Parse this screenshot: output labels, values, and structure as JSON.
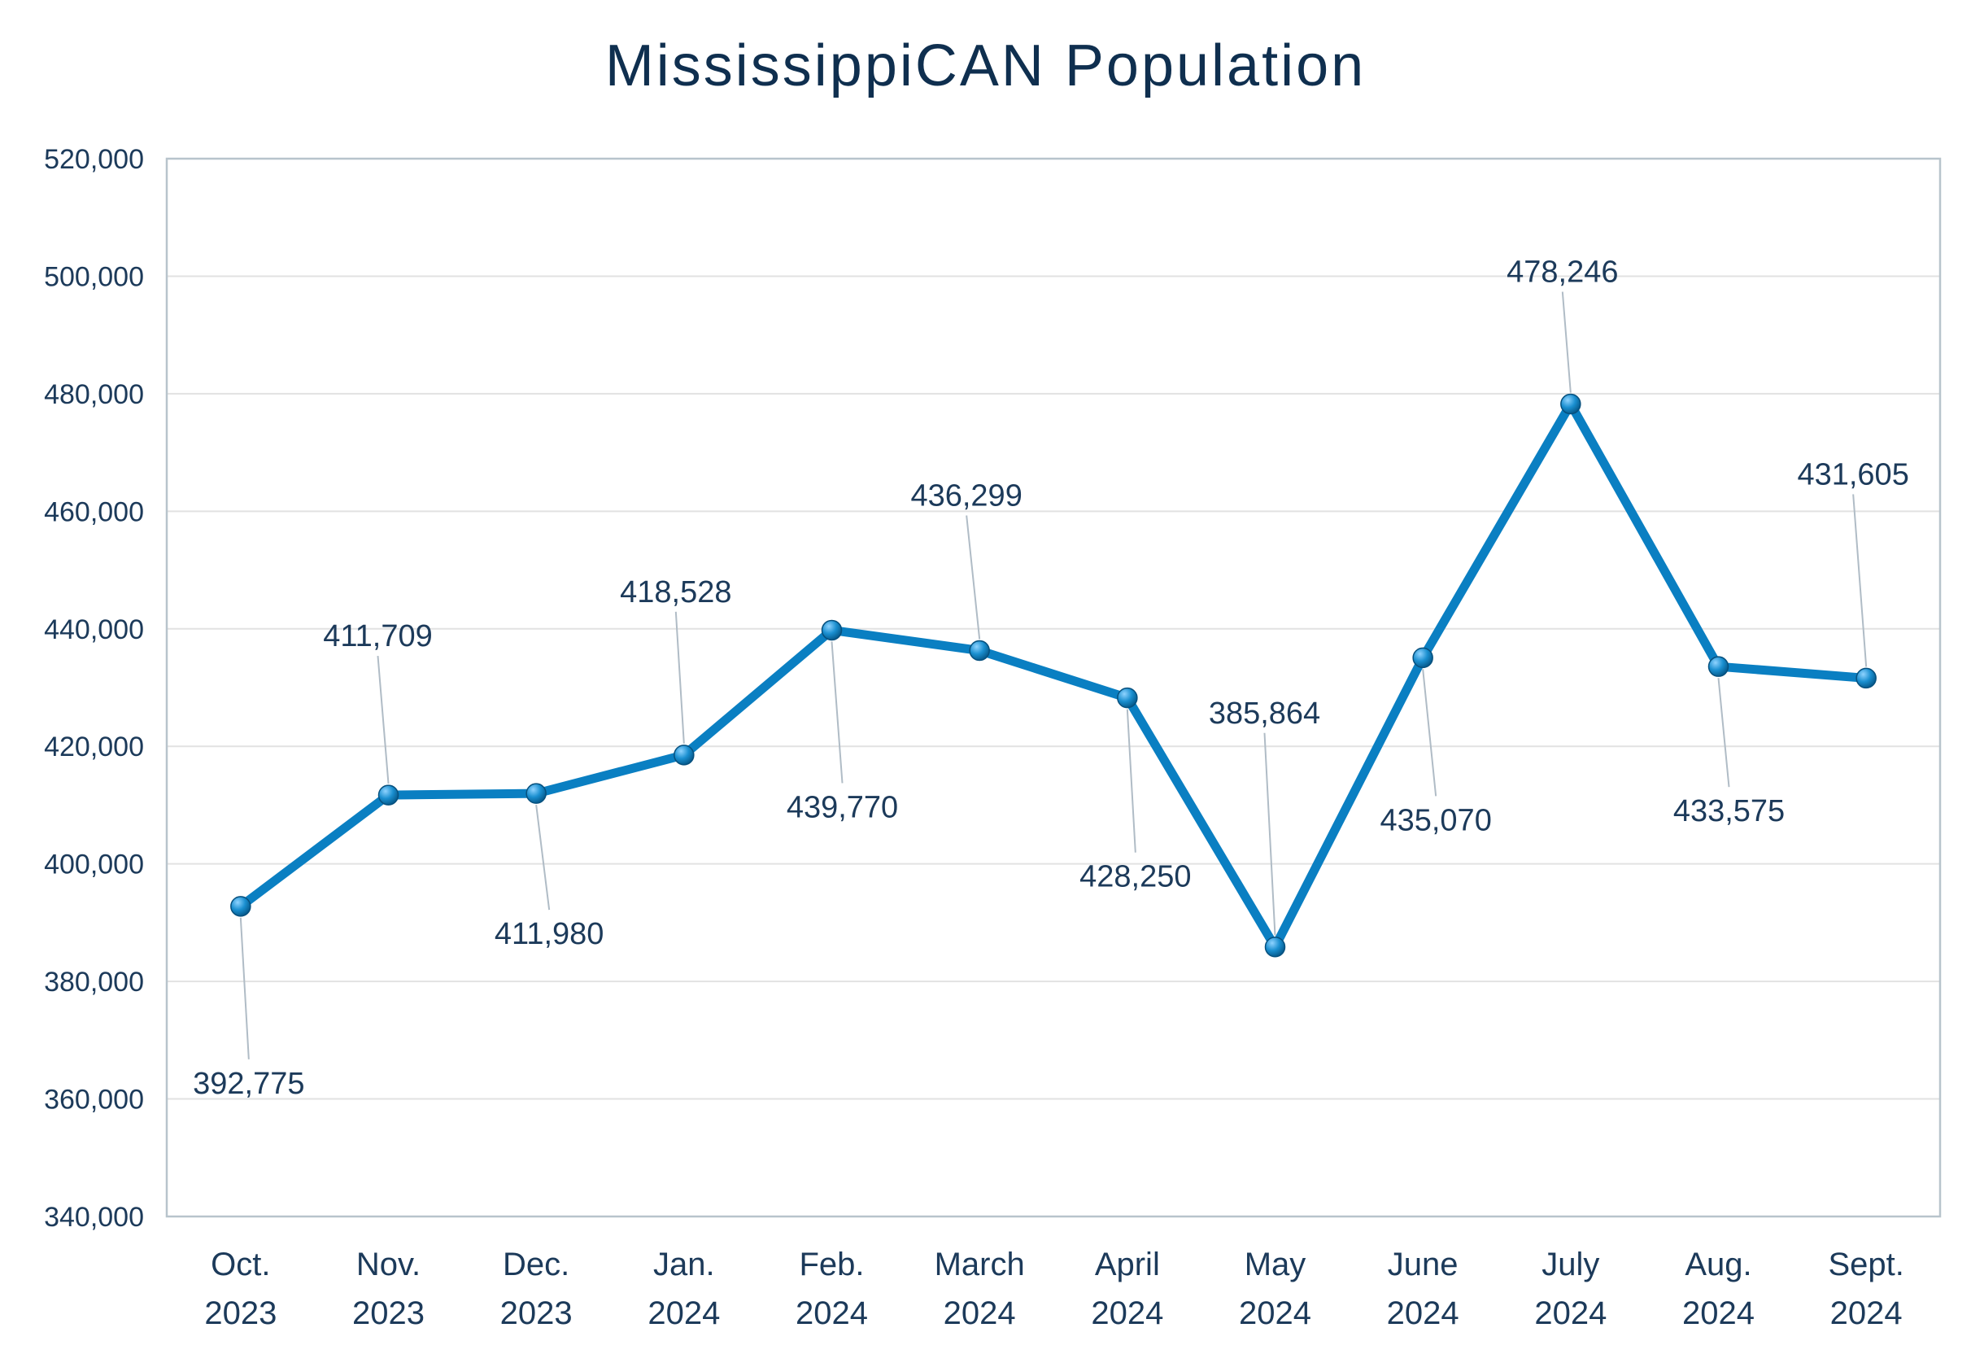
{
  "chart_data": {
    "type": "line",
    "title": "MississippiCAN Population",
    "xlabel": "",
    "ylabel": "",
    "categories": [
      [
        "Oct.",
        "2023"
      ],
      [
        "Nov.",
        "2023"
      ],
      [
        "Dec.",
        "2023"
      ],
      [
        "Jan.",
        "2024"
      ],
      [
        "Feb.",
        "2024"
      ],
      [
        "March",
        "2024"
      ],
      [
        "April",
        "2024"
      ],
      [
        "May",
        "2024"
      ],
      [
        "June",
        "2024"
      ],
      [
        "July",
        "2024"
      ],
      [
        "Aug.",
        "2024"
      ],
      [
        "Sept.",
        "2024"
      ]
    ],
    "series": [
      {
        "values": [
          392775,
          411709,
          411980,
          418528,
          439770,
          436299,
          428250,
          385864,
          435070,
          478246,
          433575,
          431605
        ],
        "labels": [
          "392,775",
          "411,709",
          "411,980",
          "418,528",
          "439,770",
          "436,299",
          "428,250",
          "385,864",
          "435,070",
          "478,246",
          "433,575",
          "431,605"
        ],
        "label_position": [
          "below",
          "above",
          "below",
          "above",
          "below",
          "above",
          "below",
          "above",
          "below",
          "above",
          "below",
          "above"
        ]
      }
    ],
    "ylim": [
      340000,
      520000
    ],
    "yticks": [
      "340,000",
      "360,000",
      "380,000",
      "400,000",
      "420,000",
      "440,000",
      "460,000",
      "480,000",
      "500,000",
      "520,000"
    ],
    "ytick_values": [
      340000,
      360000,
      380000,
      400000,
      420000,
      440000,
      460000,
      480000,
      500000,
      520000
    ],
    "grid": true,
    "legend": "none",
    "colors": {
      "line": "#0a7fc2",
      "marker": "#1a8fd0",
      "grid": "#e2e2e2",
      "axis": "#b8c4cc",
      "leader": "#b0bcc6",
      "text": "#1c3a5a",
      "title": "#0f2f4f"
    }
  }
}
